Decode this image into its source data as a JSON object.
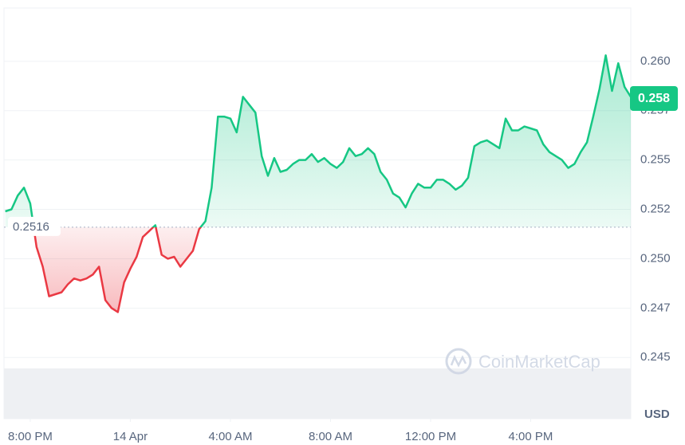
{
  "chart_data": {
    "type": "line",
    "x": [
      -1,
      -0.75,
      -0.5,
      -0.25,
      0,
      0.25,
      0.5,
      0.75,
      1,
      1.25,
      1.5,
      1.75,
      2,
      2.25,
      2.5,
      2.75,
      3,
      3.25,
      3.5,
      3.75,
      4,
      4.25,
      4.5,
      4.75,
      5,
      5.25,
      5.5,
      5.75,
      6,
      6.25,
      6.5,
      6.75,
      7,
      7.25,
      7.5,
      7.75,
      8,
      8.25,
      8.5,
      8.75,
      9,
      9.25,
      9.5,
      9.75,
      10,
      10.25,
      10.5,
      10.75,
      11,
      11.25,
      11.5,
      11.75,
      12,
      12.25,
      12.5,
      12.75,
      13,
      13.25,
      13.5,
      13.75,
      14,
      14.25,
      14.5,
      14.75,
      15,
      15.25,
      15.5,
      15.75,
      16,
      16.25,
      16.5,
      16.75,
      17,
      17.25,
      17.5,
      17.75,
      18,
      18.25,
      18.5,
      18.75,
      19,
      19.25,
      19.5,
      19.75,
      20,
      20.25,
      20.5,
      20.75,
      21,
      21.25,
      21.5,
      21.75,
      22,
      22.25,
      22.5,
      22.75,
      23,
      23.25,
      23.5,
      23.75,
      24
    ],
    "values": [
      0.2524,
      0.2525,
      0.2532,
      0.2536,
      0.2528,
      0.2506,
      0.2496,
      0.2481,
      0.2482,
      0.2483,
      0.2487,
      0.249,
      0.2489,
      0.249,
      0.2492,
      0.2496,
      0.2479,
      0.2475,
      0.2473,
      0.2488,
      0.2495,
      0.2501,
      0.2511,
      0.2514,
      0.2517,
      0.2502,
      0.25,
      0.2501,
      0.2496,
      0.25,
      0.2504,
      0.2515,
      0.2519,
      0.2536,
      0.2572,
      0.2572,
      0.2571,
      0.2564,
      0.2582,
      0.2578,
      0.2574,
      0.2552,
      0.2542,
      0.2551,
      0.2544,
      0.2545,
      0.2548,
      0.255,
      0.255,
      0.2553,
      0.2549,
      0.2551,
      0.2548,
      0.2546,
      0.2549,
      0.2556,
      0.2552,
      0.2553,
      0.2556,
      0.2553,
      0.2544,
      0.254,
      0.2533,
      0.2531,
      0.2526,
      0.2533,
      0.2538,
      0.2536,
      0.2536,
      0.254,
      0.254,
      0.2538,
      0.2535,
      0.2537,
      0.2541,
      0.2557,
      0.2559,
      0.256,
      0.2558,
      0.2556,
      0.2571,
      0.2565,
      0.2565,
      0.2567,
      0.2566,
      0.2565,
      0.2558,
      0.2554,
      0.2552,
      0.255,
      0.2546,
      0.2548,
      0.2554,
      0.2559,
      0.2572,
      0.2586,
      0.2603,
      0.2585,
      0.2599,
      0.2587,
      0.2582
    ],
    "baseline": 0.2516,
    "last_label": "0.258",
    "up_color": "#16c784",
    "down_color": "#ea3943",
    "xlim": [
      -1.05,
      24.0
    ],
    "xticks": [
      {
        "value": 0,
        "label": "8:00 PM"
      },
      {
        "value": 4,
        "label": "14 Apr"
      },
      {
        "value": 8,
        "label": "4:00 AM"
      },
      {
        "value": 12,
        "label": "8:00 AM"
      },
      {
        "value": 16,
        "label": "12:00 PM"
      },
      {
        "value": 20,
        "label": "4:00 PM"
      }
    ],
    "ylim": [
      0.2419,
      0.2627
    ],
    "yticks": [
      {
        "value": 0.245,
        "label": "0.245"
      },
      {
        "value": 0.2475,
        "label": "0.247"
      },
      {
        "value": 0.25,
        "label": "0.250"
      },
      {
        "value": 0.2525,
        "label": "0.252"
      },
      {
        "value": 0.255,
        "label": "0.255"
      },
      {
        "value": 0.2575,
        "label": "0.257"
      },
      {
        "value": 0.26,
        "label": "0.260"
      }
    ],
    "grid": true,
    "unit": "USD",
    "watermark": "CoinMarketCap"
  }
}
